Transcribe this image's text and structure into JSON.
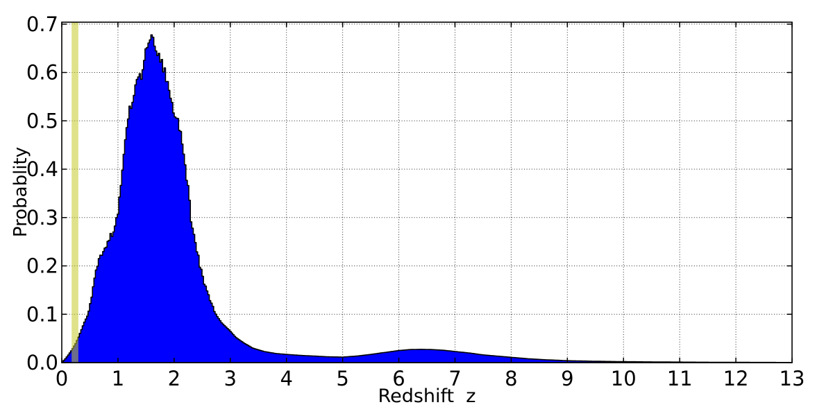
{
  "chart_data": {
    "type": "area",
    "title": "",
    "xlabel": "Redshift  z",
    "ylabel": "Probablity",
    "xlim": [
      0,
      13
    ],
    "ylim": [
      0,
      0.704
    ],
    "grid": "dotted-black",
    "legend": "none",
    "background_color": "#ffffff",
    "frame_color": "#000000",
    "xticks": {
      "values": [
        0,
        1,
        2,
        3,
        4,
        5,
        6,
        7,
        8,
        9,
        10,
        11,
        12,
        13
      ],
      "labels": [
        "0",
        "1",
        "2",
        "3",
        "4",
        "5",
        "6",
        "7",
        "8",
        "9",
        "10",
        "11",
        "12",
        "13"
      ]
    },
    "yticks": {
      "values": [
        0,
        0.1,
        0.2,
        0.3,
        0.4,
        0.5,
        0.6,
        0.7
      ],
      "labels": [
        "0.0",
        "0.1",
        "0.2",
        "0.3",
        "0.4",
        "0.5",
        "0.6",
        "0.7"
      ]
    },
    "band": {
      "name": "highlighted-redshift-band",
      "z_from": 0.175,
      "z_to": 0.295,
      "color": "#c6cb2b",
      "opacity": 0.55
    },
    "series": [
      {
        "name": "redshift-probability-distribution",
        "style": "filled-step-histogram",
        "fill_color": "#0000ff",
        "edge_color": "#000000",
        "noise": {
          "z_from": 0.5,
          "z_to": 2.75,
          "amplitude": 0.011
        },
        "points": [
          [
            0,
            0
          ],
          [
            0.05,
            0.006
          ],
          [
            0.1,
            0.013
          ],
          [
            0.15,
            0.021
          ],
          [
            0.2,
            0.03
          ],
          [
            0.25,
            0.04
          ],
          [
            0.3,
            0.053
          ],
          [
            0.35,
            0.068
          ],
          [
            0.4,
            0.083
          ],
          [
            0.47,
            0.1
          ],
          [
            0.52,
            0.13
          ],
          [
            0.57,
            0.16
          ],
          [
            0.62,
            0.2
          ],
          [
            0.68,
            0.215
          ],
          [
            0.75,
            0.235
          ],
          [
            0.82,
            0.25
          ],
          [
            0.88,
            0.262
          ],
          [
            0.95,
            0.285
          ],
          [
            1.0,
            0.315
          ],
          [
            1.05,
            0.36
          ],
          [
            1.1,
            0.42
          ],
          [
            1.13,
            0.47
          ],
          [
            1.16,
            0.5
          ],
          [
            1.2,
            0.525
          ],
          [
            1.25,
            0.54
          ],
          [
            1.3,
            0.56
          ],
          [
            1.35,
            0.585
          ],
          [
            1.38,
            0.6
          ],
          [
            1.41,
            0.59
          ],
          [
            1.45,
            0.62
          ],
          [
            1.5,
            0.645
          ],
          [
            1.55,
            0.663
          ],
          [
            1.6,
            0.671
          ],
          [
            1.64,
            0.658
          ],
          [
            1.7,
            0.641
          ],
          [
            1.75,
            0.625
          ],
          [
            1.8,
            0.612
          ],
          [
            1.84,
            0.6
          ],
          [
            1.9,
            0.568
          ],
          [
            1.95,
            0.545
          ],
          [
            2.0,
            0.522
          ],
          [
            2.06,
            0.5
          ],
          [
            2.12,
            0.47
          ],
          [
            2.18,
            0.42
          ],
          [
            2.24,
            0.37
          ],
          [
            2.3,
            0.3
          ],
          [
            2.36,
            0.26
          ],
          [
            2.42,
            0.225
          ],
          [
            2.46,
            0.2
          ],
          [
            2.55,
            0.16
          ],
          [
            2.65,
            0.125
          ],
          [
            2.74,
            0.1
          ],
          [
            2.85,
            0.082
          ],
          [
            3.0,
            0.065
          ],
          [
            3.1,
            0.052
          ],
          [
            3.25,
            0.04
          ],
          [
            3.4,
            0.03
          ],
          [
            3.6,
            0.023
          ],
          [
            3.8,
            0.019
          ],
          [
            4.0,
            0.017
          ],
          [
            4.25,
            0.015
          ],
          [
            4.5,
            0.0135
          ],
          [
            4.75,
            0.012
          ],
          [
            5.0,
            0.0115
          ],
          [
            5.25,
            0.0135
          ],
          [
            5.5,
            0.017
          ],
          [
            5.75,
            0.021
          ],
          [
            6.0,
            0.025
          ],
          [
            6.2,
            0.027
          ],
          [
            6.4,
            0.0275
          ],
          [
            6.6,
            0.027
          ],
          [
            6.8,
            0.0255
          ],
          [
            7.0,
            0.023
          ],
          [
            7.25,
            0.02
          ],
          [
            7.5,
            0.016
          ],
          [
            7.75,
            0.0135
          ],
          [
            8.0,
            0.011
          ],
          [
            8.3,
            0.008
          ],
          [
            8.6,
            0.006
          ],
          [
            9.0,
            0.004
          ],
          [
            9.5,
            0.0028
          ],
          [
            10.0,
            0.002
          ],
          [
            10.5,
            0.0015
          ],
          [
            11.0,
            0.0011
          ],
          [
            11.5,
            0.0008
          ],
          [
            12.0,
            0.0006
          ],
          [
            12.5,
            0.0004
          ],
          [
            13.0,
            0.0003
          ]
        ]
      }
    ]
  }
}
